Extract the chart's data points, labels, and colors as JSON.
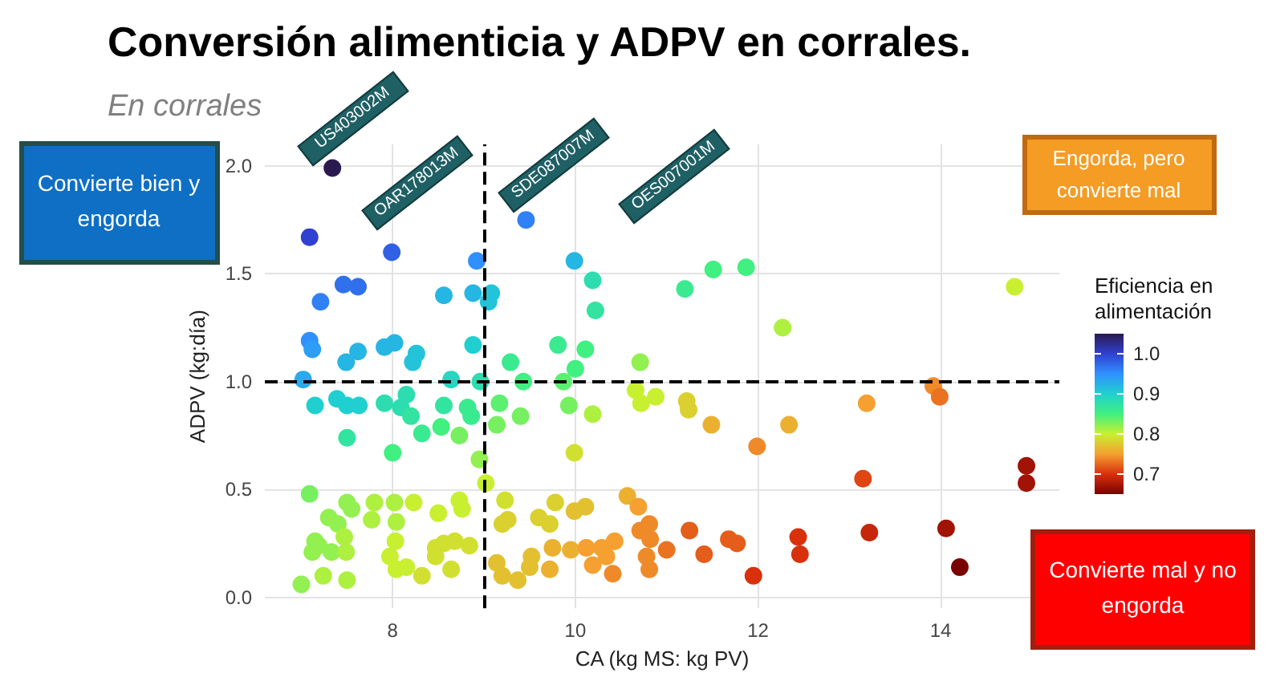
{
  "chart_data": {
    "type": "scatter",
    "title": "Conversión alimenticia y ADPV en corrales.",
    "subtitle": "En corrales",
    "xlabel": "CA (kg MS: kg PV)",
    "ylabel": "ADPV (kg:día)",
    "clabel": "Eficiencia en alimentación",
    "xlim": [
      6.6,
      15.3
    ],
    "xticks": [
      8,
      10,
      12,
      14
    ],
    "ylim": [
      -0.05,
      2.1
    ],
    "yticks": [
      {
        "value": 0,
        "label": "0.0"
      },
      {
        "value": 0.5,
        "label": "0.5"
      },
      {
        "value": 1,
        "label": "1.0"
      },
      {
        "value": 1.5,
        "label": "1.5"
      },
      {
        "value": 2,
        "label": "2.0"
      }
    ],
    "clim": [
      0.65,
      1.05
    ],
    "cticks": [
      0.7,
      0.8,
      0.9,
      {
        "value": 1,
        "label": "1.0"
      }
    ],
    "grid": true,
    "marker": "circle",
    "x": [
      7.34,
      7.09,
      7.99,
      7.46,
      7.62,
      7.21,
      8.92,
      8.56,
      8.88,
      9.08,
      9.05,
      7.09,
      7.12,
      7.91,
      8.02,
      7.62,
      7.49,
      8.26,
      8.22,
      8.88,
      7.02,
      8.64,
      8.96,
      7.15,
      7.39,
      7.5,
      7.63,
      7.91,
      8.15,
      8.09,
      8.2,
      8.32,
      8.56,
      8.53,
      8.82,
      8.86,
      8.73,
      7.5,
      8.0,
      8.95,
      9.02,
      7.09,
      7.3,
      7.5,
      7.4,
      7.55,
      7.77,
      7.8,
      8.02,
      8.04,
      8.23,
      8.5,
      8.73,
      8.76,
      8.03,
      7.15,
      7.12,
      7.19,
      7.33,
      7.47,
      7.49,
      7.24,
      7.0,
      7.5,
      7.97,
      8.04,
      8.15,
      8.32,
      8.47,
      8.56,
      8.68,
      8.84,
      8.64,
      8.47,
      9.46,
      9.99,
      10.19,
      10.22,
      11.2,
      11.51,
      11.87,
      9.81,
      10.11,
      9.29,
      10.0,
      10.71,
      9.43,
      9.87,
      10.66,
      10.72,
      10.88,
      11.22,
      11.24,
      11.49,
      9.17,
      9.4,
      9.14,
      9.93,
      10.19,
      9.99,
      11.99,
      9.23,
      9.2,
      9.26,
      9.6,
      9.72,
      9.78,
      9.99,
      10.11,
      10.57,
      10.69,
      10.81,
      10.71,
      10.82,
      11.0,
      11.25,
      11.41,
      11.68,
      11.77,
      11.95,
      9.14,
      9.2,
      9.37,
      9.52,
      9.5,
      9.72,
      9.75,
      9.95,
      10.12,
      10.29,
      10.43,
      10.34,
      10.19,
      10.41,
      10.78,
      10.81,
      14.81,
      12.27,
      13.92,
      13.99,
      13.19,
      12.34,
      13.15,
      14.94,
      14.94,
      12.44,
      12.46,
      13.22,
      14.06,
      14.21
    ],
    "values": [
      1.99,
      1.67,
      1.6,
      1.45,
      1.44,
      1.37,
      1.56,
      1.4,
      1.41,
      1.41,
      1.37,
      1.19,
      1.15,
      1.16,
      1.18,
      1.14,
      1.09,
      1.13,
      1.09,
      1.17,
      1.01,
      1.01,
      1.0,
      0.89,
      0.92,
      0.89,
      0.89,
      0.9,
      0.94,
      0.88,
      0.84,
      0.76,
      0.89,
      0.79,
      0.88,
      0.84,
      0.75,
      0.74,
      0.67,
      0.64,
      0.53,
      0.48,
      0.37,
      0.44,
      0.34,
      0.41,
      0.36,
      0.44,
      0.44,
      0.35,
      0.44,
      0.39,
      0.45,
      0.41,
      0.26,
      0.26,
      0.21,
      0.24,
      0.21,
      0.28,
      0.21,
      0.1,
      0.06,
      0.08,
      0.19,
      0.13,
      0.14,
      0.1,
      0.23,
      0.25,
      0.26,
      0.24,
      0.13,
      0.19,
      1.75,
      1.56,
      1.47,
      1.33,
      1.43,
      1.52,
      1.53,
      1.17,
      1.15,
      1.09,
      1.06,
      1.09,
      1.0,
      1.0,
      0.96,
      0.9,
      0.93,
      0.91,
      0.87,
      0.8,
      0.9,
      0.84,
      0.8,
      0.89,
      0.85,
      0.67,
      0.7,
      0.45,
      0.34,
      0.36,
      0.37,
      0.34,
      0.44,
      0.4,
      0.42,
      0.47,
      0.42,
      0.34,
      0.31,
      0.27,
      0.22,
      0.31,
      0.2,
      0.27,
      0.25,
      0.1,
      0.16,
      0.1,
      0.08,
      0.19,
      0.14,
      0.13,
      0.23,
      0.22,
      0.23,
      0.23,
      0.26,
      0.19,
      0.15,
      0.11,
      0.19,
      0.13,
      1.44,
      1.25,
      0.98,
      0.93,
      0.9,
      0.8,
      0.55,
      0.61,
      0.53,
      0.28,
      0.2,
      0.3,
      0.32,
      0.14
    ],
    "cvalues": [
      1.05,
      1.0,
      0.98,
      0.97,
      0.97,
      0.96,
      0.95,
      0.92,
      0.92,
      0.91,
      0.91,
      0.95,
      0.94,
      0.92,
      0.92,
      0.92,
      0.92,
      0.91,
      0.91,
      0.9,
      0.93,
      0.89,
      0.88,
      0.9,
      0.9,
      0.9,
      0.9,
      0.88,
      0.88,
      0.88,
      0.87,
      0.86,
      0.87,
      0.85,
      0.86,
      0.86,
      0.83,
      0.87,
      0.85,
      0.82,
      0.8,
      0.83,
      0.82,
      0.82,
      0.82,
      0.82,
      0.81,
      0.81,
      0.81,
      0.81,
      0.8,
      0.8,
      0.8,
      0.8,
      0.8,
      0.82,
      0.82,
      0.82,
      0.82,
      0.81,
      0.81,
      0.81,
      0.82,
      0.81,
      0.8,
      0.8,
      0.8,
      0.79,
      0.79,
      0.79,
      0.79,
      0.79,
      0.79,
      0.79,
      0.96,
      0.92,
      0.88,
      0.87,
      0.86,
      0.85,
      0.85,
      0.86,
      0.85,
      0.86,
      0.85,
      0.82,
      0.85,
      0.84,
      0.8,
      0.8,
      0.8,
      0.78,
      0.78,
      0.76,
      0.84,
      0.83,
      0.83,
      0.83,
      0.81,
      0.79,
      0.74,
      0.79,
      0.78,
      0.78,
      0.78,
      0.78,
      0.78,
      0.77,
      0.77,
      0.76,
      0.75,
      0.74,
      0.74,
      0.74,
      0.73,
      0.72,
      0.72,
      0.72,
      0.72,
      0.7,
      0.77,
      0.77,
      0.77,
      0.77,
      0.77,
      0.76,
      0.76,
      0.76,
      0.75,
      0.75,
      0.75,
      0.75,
      0.75,
      0.74,
      0.74,
      0.74,
      0.8,
      0.81,
      0.74,
      0.73,
      0.75,
      0.76,
      0.71,
      0.67,
      0.67,
      0.7,
      0.7,
      0.69,
      0.67,
      0.65
    ],
    "ref_lines": [
      {
        "axis": "x",
        "value": 9,
        "color": "#000000",
        "line_style": "dashed"
      },
      {
        "axis": "y",
        "value": 1,
        "color": "#000000",
        "line_style": "dashed"
      }
    ],
    "annotations": [
      "US403002M",
      "OAR178013M",
      "SDE087007M",
      "OES007001M",
      "Convierte bien y engorda",
      "Engorda, pero convierte mal",
      "Convierte mal y no engorda"
    ]
  }
}
